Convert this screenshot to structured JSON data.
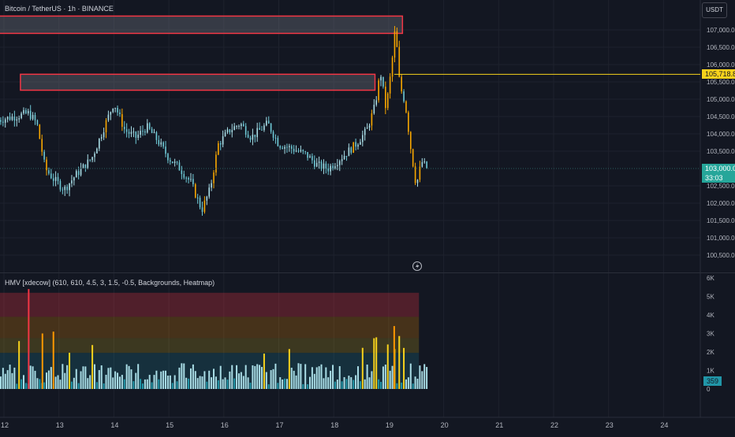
{
  "header": {
    "symbol_legend": "Bitcoin / TetherUS · 1h · BINANCE",
    "currency_button": "USDT"
  },
  "price_axis": {
    "labels": [
      "107,000.00",
      "106,500.00",
      "106,000.00",
      "105,500.00",
      "105,000.00",
      "104,500.00",
      "104,000.00",
      "103,500.00",
      "102,500.00",
      "102,000.00",
      "101,500.00",
      "101,000.00",
      "100,500.00"
    ],
    "range": [
      100300,
      107400
    ]
  },
  "price_badges": {
    "level_value": "105,718.82",
    "level_price": 105718.82,
    "last_value": "103,000.00",
    "last_price": 103000,
    "countdown": "33:03",
    "level_color": "#f7d21c",
    "last_color": "#26a69a"
  },
  "zones": [
    {
      "price_top": 107400,
      "price_bottom": 106900,
      "start_day": 11.9,
      "end_day": 19.25
    },
    {
      "price_top": 105720,
      "price_bottom": 105260,
      "start_day": 12.3,
      "end_day": 18.75
    }
  ],
  "indicator": {
    "legend": "HMV [xdecow] (610, 610, 4.5, 3, 1.5, -0.5, Backgrounds, Heatmap)",
    "axis_labels": [
      "6K",
      "5K",
      "4K",
      "3K",
      "2K",
      "1K",
      "0"
    ],
    "range": [
      0,
      6000
    ],
    "last_value": "359",
    "colors": {
      "normal": "#a9dde6",
      "low": "#2196a8",
      "high": "#f7d21c",
      "very_high": "#ff9800",
      "extreme": "#f23645"
    }
  },
  "time_axis": {
    "labels": [
      {
        "day": 12,
        "label": "12"
      },
      {
        "day": 13,
        "label": "13"
      },
      {
        "day": 14,
        "label": "14"
      },
      {
        "day": 15,
        "label": "15"
      },
      {
        "day": 16,
        "label": "16"
      },
      {
        "day": 17,
        "label": "17"
      },
      {
        "day": 18,
        "label": "18"
      },
      {
        "day": 19,
        "label": "19"
      },
      {
        "day": 20,
        "label": "20"
      },
      {
        "day": 21,
        "label": "21"
      },
      {
        "day": 22,
        "label": "22"
      },
      {
        "day": 23,
        "label": "23"
      },
      {
        "day": 24,
        "label": "24"
      }
    ]
  },
  "chart_data": {
    "type": "candlestick",
    "x_unit": "day of month",
    "series": [
      {
        "day": 11.9,
        "price": 104400
      },
      {
        "day": 12.2,
        "price": 104500
      },
      {
        "day": 12.45,
        "price": 104600
      },
      {
        "day": 12.6,
        "price": 104300
      },
      {
        "day": 12.75,
        "price": 103000
      },
      {
        "day": 12.9,
        "price": 102700
      },
      {
        "day": 13.1,
        "price": 102400
      },
      {
        "day": 13.3,
        "price": 102800
      },
      {
        "day": 13.6,
        "price": 103300
      },
      {
        "day": 13.9,
        "price": 104500
      },
      {
        "day": 14.0,
        "price": 104900
      },
      {
        "day": 14.2,
        "price": 104100
      },
      {
        "day": 14.4,
        "price": 103900
      },
      {
        "day": 14.6,
        "price": 104200
      },
      {
        "day": 14.8,
        "price": 103800
      },
      {
        "day": 15.0,
        "price": 103300
      },
      {
        "day": 15.2,
        "price": 103000
      },
      {
        "day": 15.4,
        "price": 102600
      },
      {
        "day": 15.6,
        "price": 101800
      },
      {
        "day": 15.75,
        "price": 102400
      },
      {
        "day": 15.9,
        "price": 103700
      },
      {
        "day": 16.1,
        "price": 104100
      },
      {
        "day": 16.3,
        "price": 104300
      },
      {
        "day": 16.5,
        "price": 103900
      },
      {
        "day": 16.8,
        "price": 104300
      },
      {
        "day": 17.0,
        "price": 103700
      },
      {
        "day": 17.2,
        "price": 103600
      },
      {
        "day": 17.5,
        "price": 103400
      },
      {
        "day": 17.7,
        "price": 103100
      },
      {
        "day": 17.9,
        "price": 103000
      },
      {
        "day": 18.2,
        "price": 103400
      },
      {
        "day": 18.4,
        "price": 103700
      },
      {
        "day": 18.6,
        "price": 104100
      },
      {
        "day": 18.75,
        "price": 104800
      },
      {
        "day": 18.85,
        "price": 105800
      },
      {
        "day": 18.95,
        "price": 104700
      },
      {
        "day": 19.05,
        "price": 105900
      },
      {
        "day": 19.12,
        "price": 107100
      },
      {
        "day": 19.2,
        "price": 105400
      },
      {
        "day": 19.3,
        "price": 104900
      },
      {
        "day": 19.4,
        "price": 103600
      },
      {
        "day": 19.5,
        "price": 102500
      },
      {
        "day": 19.6,
        "price": 103200
      },
      {
        "day": 19.7,
        "price": 103000
      }
    ]
  }
}
